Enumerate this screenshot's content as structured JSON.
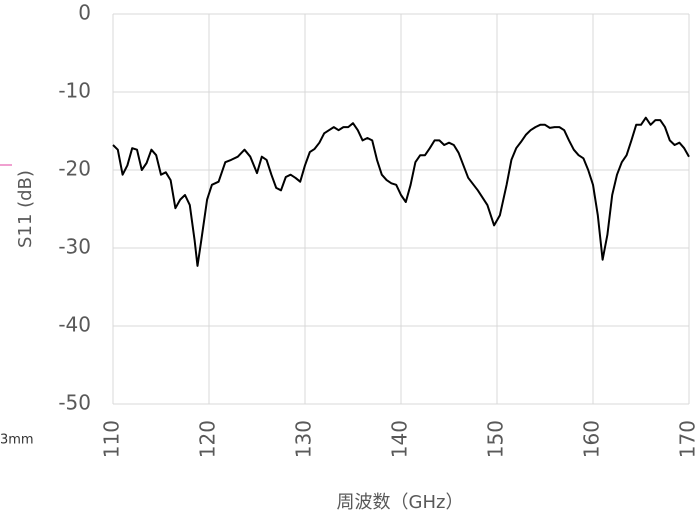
{
  "chart_data": {
    "type": "line",
    "x_label": "周波数（GHz）",
    "y_label": "S11 (dB)",
    "side_text": "3mm",
    "xlim": [
      110,
      170
    ],
    "xticks": [
      110,
      120,
      130,
      140,
      150,
      160,
      170
    ],
    "ylim": [
      -50,
      0
    ],
    "yticks": [
      -50,
      -40,
      -30,
      -20,
      -10,
      0
    ],
    "grid": true,
    "series": [
      {
        "color": "#000000",
        "x": [
          110,
          110.5,
          111,
          111.5,
          112,
          112.5,
          113,
          113.5,
          114,
          114.5,
          115,
          115.5,
          116,
          116.5,
          117,
          117.5,
          118,
          118.5,
          118.8,
          119.2,
          119.8,
          120.3,
          121,
          121.7,
          122.3,
          123,
          123.7,
          124.3,
          125,
          125.5,
          126,
          126.5,
          127,
          127.5,
          128,
          128.5,
          129,
          129.5,
          130,
          130.5,
          131,
          131.5,
          132,
          132.5,
          133,
          133.5,
          134,
          134.5,
          135,
          135.5,
          136,
          136.5,
          137,
          137.5,
          138,
          138.5,
          139,
          139.5,
          140,
          140.5,
          141,
          141.5,
          142,
          142.5,
          143,
          143.5,
          144,
          144.5,
          145,
          145.5,
          146,
          146.5,
          147,
          148,
          149,
          149.7,
          150.3,
          151,
          151.5,
          152,
          152.5,
          153,
          153.5,
          154,
          154.5,
          155,
          155.5,
          156,
          156.5,
          157,
          157.5,
          158,
          158.5,
          159,
          159.5,
          160,
          160.5,
          161,
          161.5,
          162,
          162.5,
          163,
          163.5,
          164,
          164.5,
          165,
          165.5,
          166,
          166.5,
          167,
          167.5,
          168,
          168.5,
          169,
          169.5,
          170
        ],
        "values": [
          -16.8,
          -17.4,
          -20.6,
          -19.4,
          -17.2,
          -17.4,
          -20,
          -19.1,
          -17.4,
          -18.1,
          -20.6,
          -20.3,
          -21.3,
          -24.9,
          -23.8,
          -23.2,
          -24.5,
          -29,
          -32.3,
          -29,
          -23.8,
          -21.9,
          -21.5,
          -19,
          -18.7,
          -18.3,
          -17.4,
          -18.3,
          -20.4,
          -18.3,
          -18.7,
          -20.6,
          -22.3,
          -22.6,
          -20.9,
          -20.6,
          -21,
          -21.5,
          -19.4,
          -17.7,
          -17.3,
          -16.5,
          -15.3,
          -14.9,
          -14.5,
          -14.9,
          -14.5,
          -14.5,
          -14,
          -14.9,
          -16.2,
          -15.9,
          -16.2,
          -18.7,
          -20.6,
          -21.3,
          -21.7,
          -21.9,
          -23.2,
          -24.1,
          -21.9,
          -19,
          -18.1,
          -18.1,
          -17.2,
          -16.2,
          -16.2,
          -16.8,
          -16.5,
          -16.8,
          -17.8,
          -19.4,
          -21,
          -22.6,
          -24.5,
          -27.1,
          -25.8,
          -21.9,
          -18.7,
          -17.2,
          -16.4,
          -15.5,
          -14.9,
          -14.5,
          -14.2,
          -14.2,
          -14.6,
          -14.5,
          -14.5,
          -14.9,
          -16.2,
          -17.4,
          -18.1,
          -18.5,
          -20,
          -21.9,
          -25.8,
          -31.5,
          -28.3,
          -23.2,
          -20.6,
          -19,
          -18.1,
          -16.2,
          -14.2,
          -14.2,
          -13.3,
          -14.2,
          -13.6,
          -13.6,
          -14.5,
          -16.2,
          -16.8,
          -16.5,
          -17.2,
          -18.3
        ]
      }
    ]
  }
}
